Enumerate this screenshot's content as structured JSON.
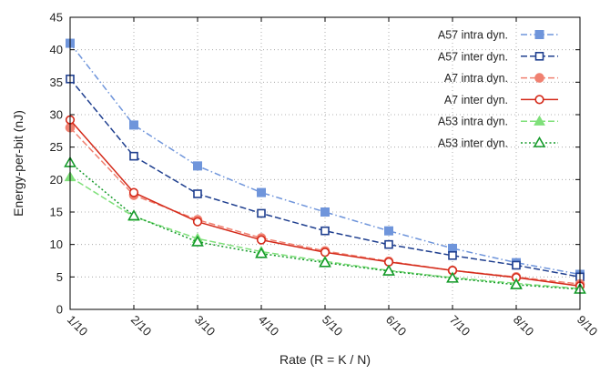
{
  "chart_data": {
    "type": "line",
    "xlabel": "Rate (R = K / N)",
    "ylabel": "Energy-per-bit (nJ)",
    "categories": [
      "1/10",
      "2/10",
      "3/10",
      "4/10",
      "5/10",
      "6/10",
      "7/10",
      "8/10",
      "9/10"
    ],
    "ylim": [
      0,
      45
    ],
    "yticks": [
      0,
      5,
      10,
      15,
      20,
      25,
      30,
      35,
      40,
      45
    ],
    "grid": true,
    "legend_position": "top-right",
    "series": [
      {
        "name": "A57 intra dyn.",
        "color": "#6f95db",
        "line_style": "dash-dot",
        "marker": "square-filled",
        "values": [
          41.0,
          28.4,
          22.1,
          18.0,
          15.0,
          12.1,
          9.4,
          7.2,
          5.4
        ]
      },
      {
        "name": "A57 inter dyn.",
        "color": "#1f3f8f",
        "line_style": "dashed",
        "marker": "square-open",
        "values": [
          35.5,
          23.6,
          17.8,
          14.8,
          12.1,
          10.0,
          8.3,
          6.8,
          5.0
        ]
      },
      {
        "name": "A7 intra dyn.",
        "color": "#f08070",
        "line_style": "dashed",
        "marker": "circle-filled",
        "values": [
          28.0,
          17.6,
          13.8,
          11.0,
          9.0,
          7.4,
          6.0,
          5.0,
          3.9
        ]
      },
      {
        "name": "A7 inter dyn.",
        "color": "#d42a1a",
        "line_style": "solid",
        "marker": "circle-open",
        "values": [
          29.2,
          18.0,
          13.5,
          10.7,
          8.8,
          7.3,
          6.0,
          4.9,
          3.6
        ]
      },
      {
        "name": "A53 intra dyn.",
        "color": "#7fe07a",
        "line_style": "dashed",
        "marker": "triangle-filled",
        "values": [
          20.4,
          14.3,
          10.9,
          8.9,
          7.4,
          6.0,
          4.9,
          4.0,
          3.2
        ]
      },
      {
        "name": "A53 inter dyn.",
        "color": "#159a2a",
        "line_style": "dotted",
        "marker": "triangle-open",
        "values": [
          22.6,
          14.4,
          10.4,
          8.6,
          7.2,
          5.9,
          4.8,
          3.8,
          3.1
        ]
      }
    ]
  }
}
